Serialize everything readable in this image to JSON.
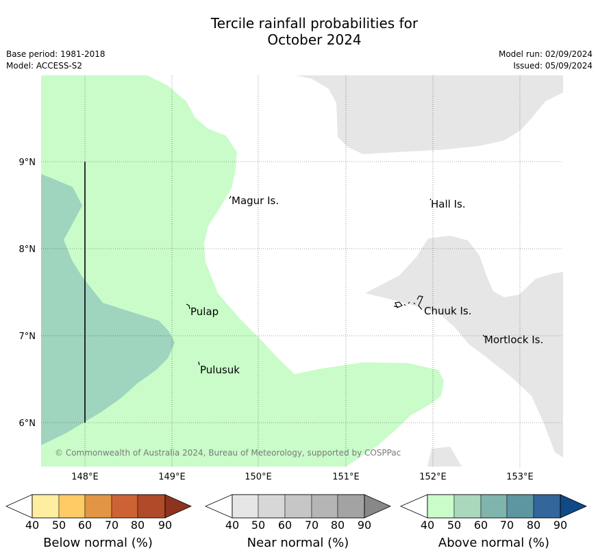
{
  "title_line1": "Tercile rainfall probabilities for",
  "title_line2": "October 2024",
  "meta_left": [
    "Base period: 1981-2018",
    "Model: ACCESS-S2"
  ],
  "meta_right": [
    "Model run: 02/09/2024",
    "Issued: 05/09/2024"
  ],
  "lat_ticks": [
    "9°N",
    "8°N",
    "7°N",
    "6°N"
  ],
  "lon_ticks": [
    "148°E",
    "149°E",
    "150°E",
    "151°E",
    "152°E",
    "153°E"
  ],
  "places": [
    "Magur Is.",
    "Hall Is.",
    "Pulap",
    "Chuuk Is.",
    "Mortlock Is.",
    "Pulusuk"
  ],
  "copyright": "© Commonwealth of Australia 2024, Bureau of Meteorology, supported by COSPPac",
  "colorbars": [
    {
      "label": "Below normal (%)",
      "ticks": [
        "40",
        "50",
        "60",
        "70",
        "80",
        "90"
      ],
      "colors": [
        "#ffeda0",
        "#fecb65",
        "#e29545",
        "#cd6334",
        "#b04a28",
        "#8f3321"
      ]
    },
    {
      "label": "Near normal (%)",
      "ticks": [
        "40",
        "50",
        "60",
        "70",
        "80",
        "90"
      ],
      "colors": [
        "#e6e6e6",
        "#d7d7d7",
        "#c6c6c6",
        "#b5b5b5",
        "#a3a3a3",
        "#888888"
      ]
    },
    {
      "label": "Above normal (%)",
      "ticks": [
        "40",
        "50",
        "60",
        "70",
        "80",
        "90"
      ],
      "colors": [
        "#c9fcc9",
        "#a9d8bc",
        "#7fb5ad",
        "#5d95a1",
        "#33669a",
        "#0f4a87"
      ]
    }
  ],
  "region_colors": {
    "above_40": "#c9fcc9",
    "above_50": "#9fd4be",
    "near_40": "#e6e6e6"
  }
}
